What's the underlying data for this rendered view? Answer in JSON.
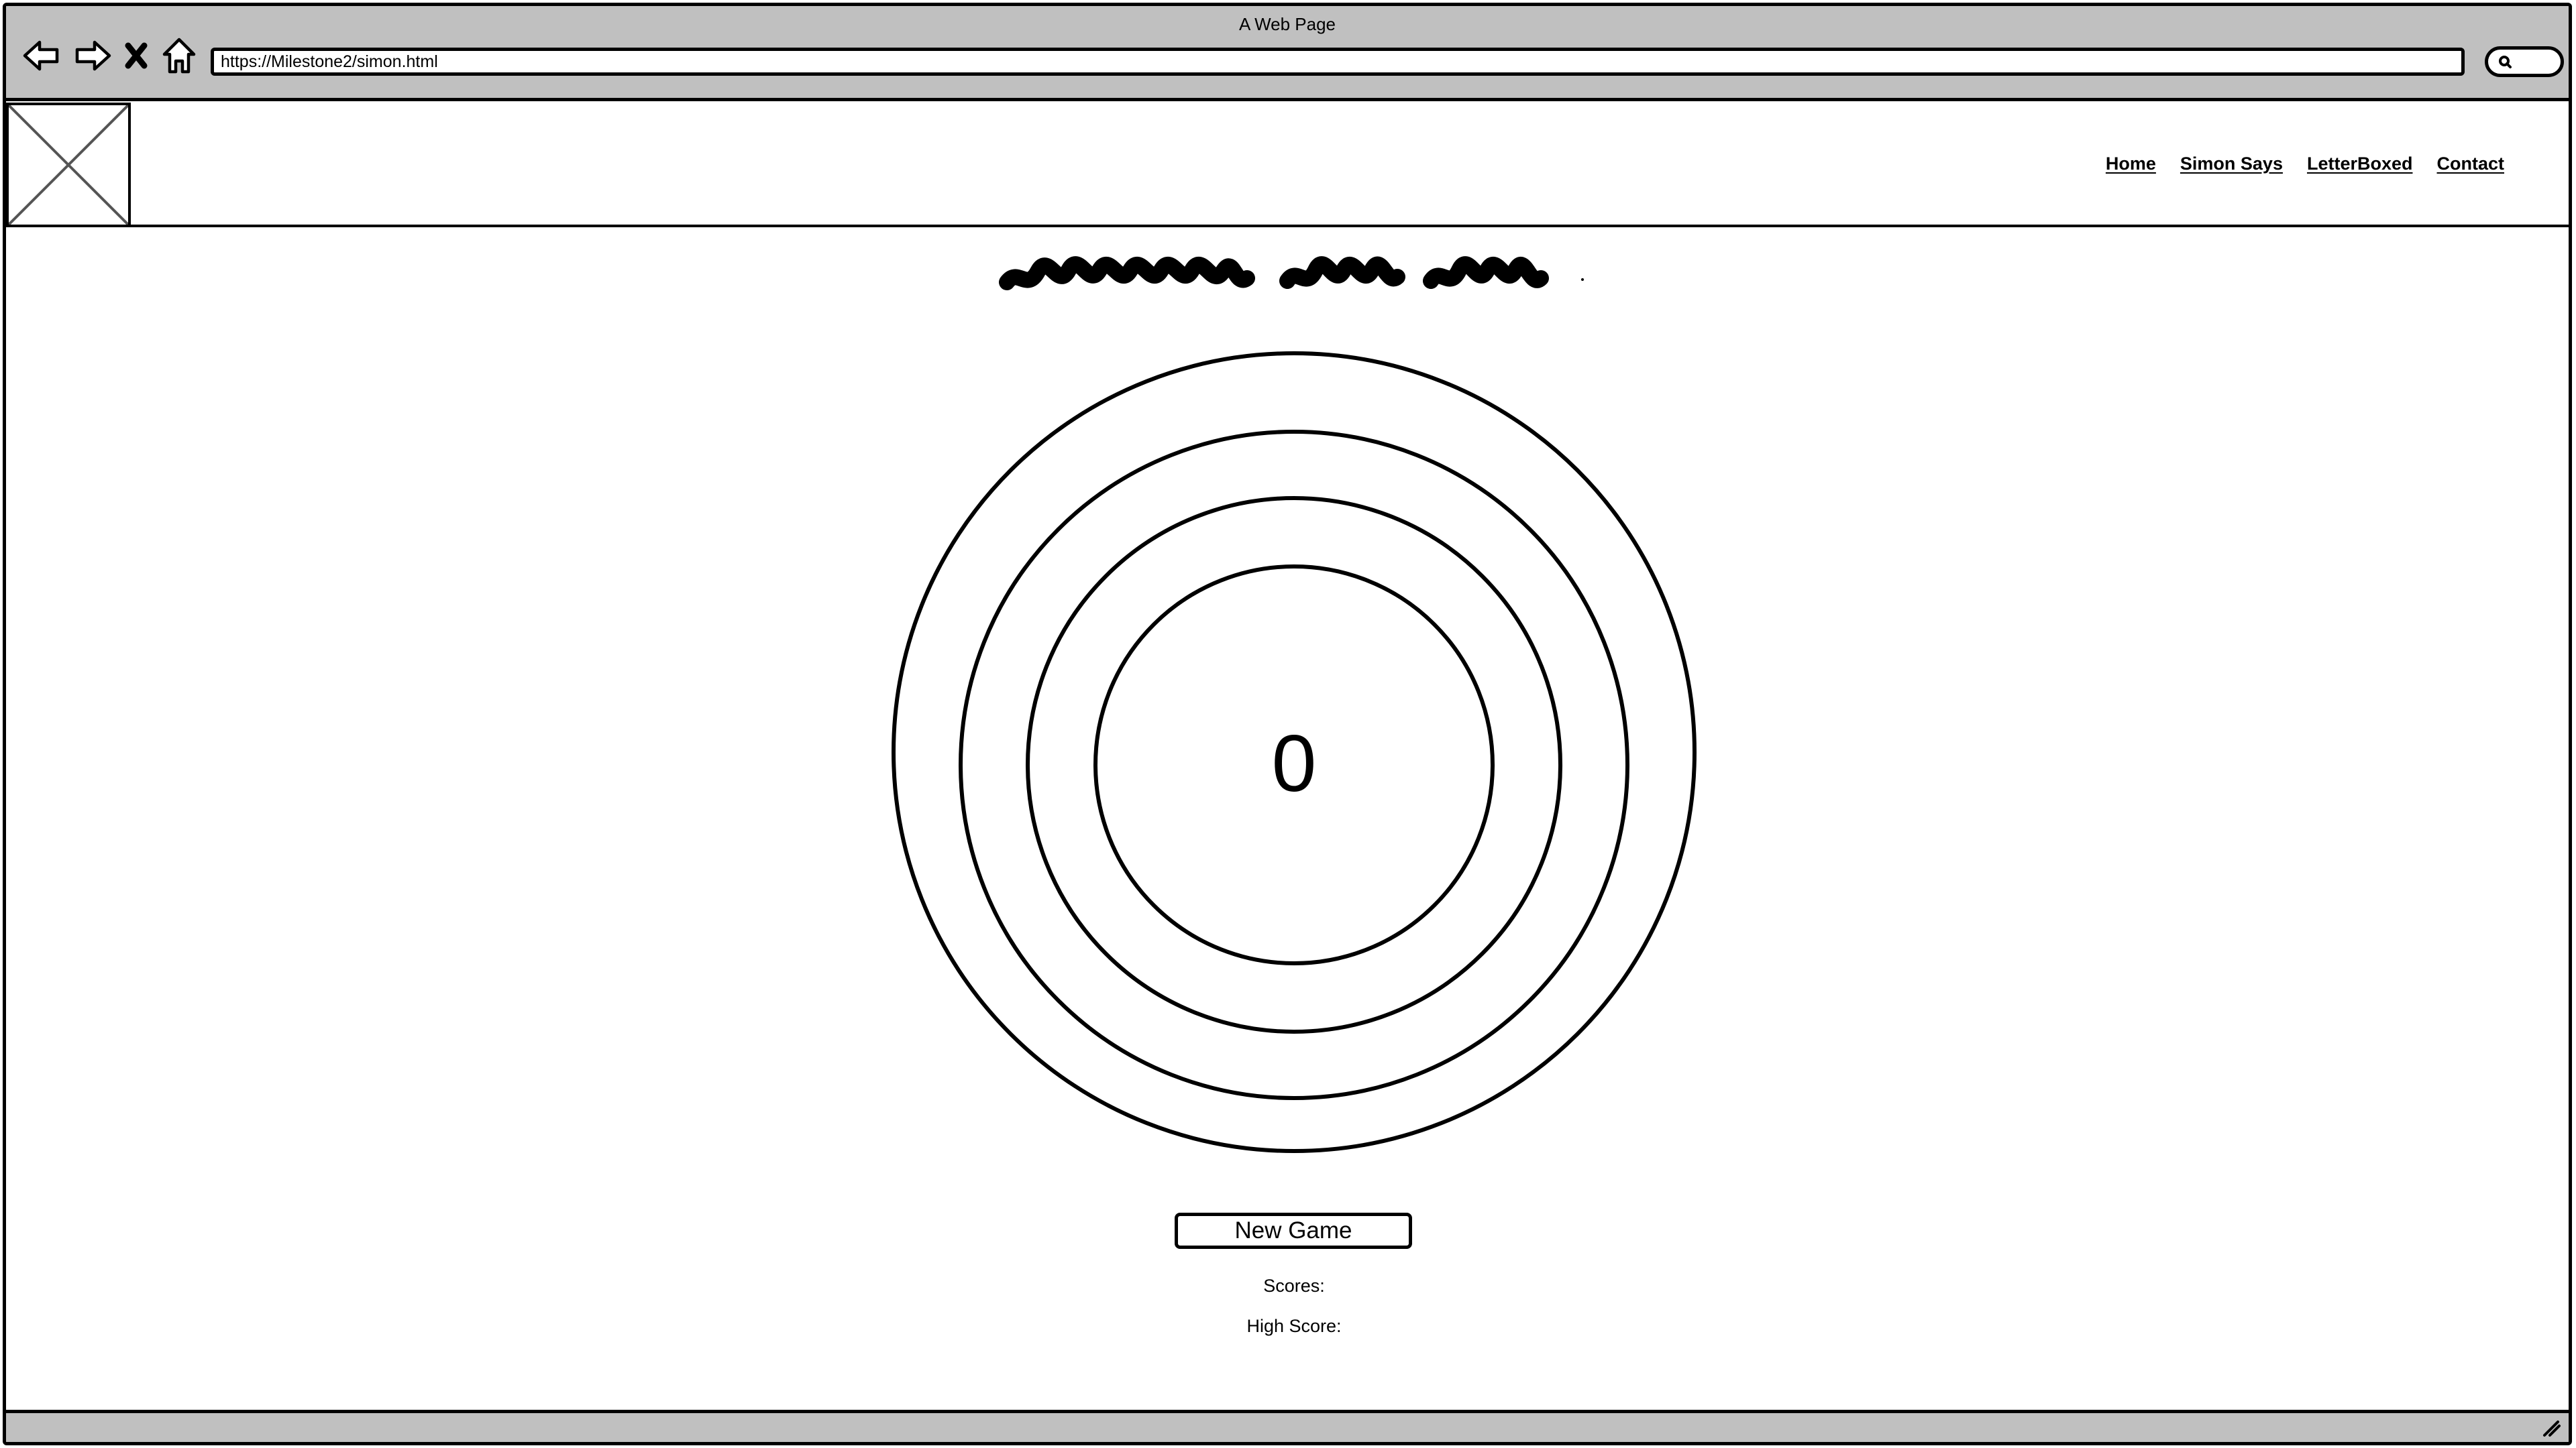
{
  "window": {
    "title": "A Web Page",
    "url": "https://Milestone2/simon.html"
  },
  "nav": {
    "items": [
      {
        "label": "Home"
      },
      {
        "label": "Simon Says"
      },
      {
        "label": "LetterBoxed"
      },
      {
        "label": "Contact"
      }
    ]
  },
  "game": {
    "score_display": "0",
    "new_game_label": "New Game",
    "scores_label": "Scores:",
    "high_score_label": "High Score:"
  },
  "icons": {
    "back": "back-arrow-icon",
    "forward": "forward-arrow-icon",
    "stop": "close-icon",
    "home": "home-icon",
    "search": "search-icon",
    "logo": "image-placeholder-icon",
    "resize": "resize-grip-icon"
  }
}
